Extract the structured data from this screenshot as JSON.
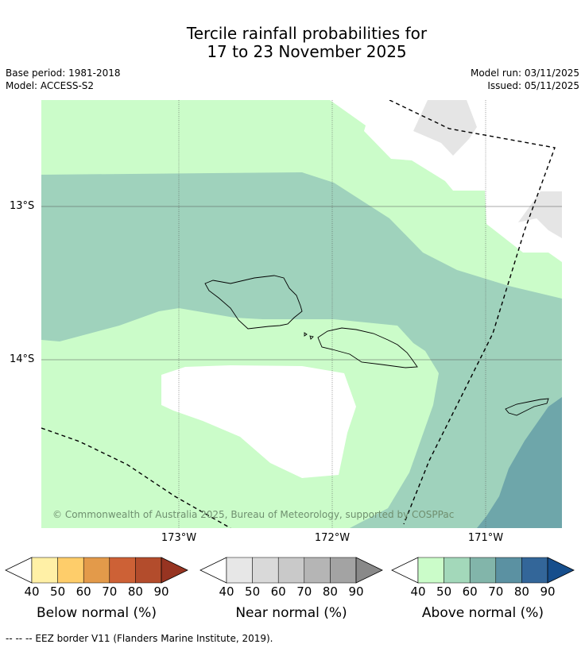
{
  "title_line1": "Tercile rainfall probabilities for",
  "title_line2": "17 to 23 November 2025",
  "base_period": "Base period: 1981-2018",
  "model": "Model: ACCESS-S2",
  "model_run": "Model run: 03/11/2025",
  "issued": "Issued: 05/11/2025",
  "lat_labels": [
    "13°S",
    "14°S"
  ],
  "lon_labels": [
    "173°W",
    "172°W",
    "171°W"
  ],
  "copyright": "© Commonwealth of Australia 2025, Bureau of Meteorology, supported by COSPPac",
  "footer": "--  --  -- EEZ border V11 (Flanders Marine Institute, 2019).",
  "colorbars": [
    {
      "title": "Below normal (%)",
      "ticks": [
        "40",
        "50",
        "60",
        "70",
        "80",
        "90"
      ],
      "colors": [
        "#fff0a6",
        "#fecd6a",
        "#e39a4a",
        "#cd6136",
        "#b34c2c",
        "#973421"
      ]
    },
    {
      "title": "Near normal (%)",
      "ticks": [
        "40",
        "50",
        "60",
        "70",
        "80",
        "90"
      ],
      "colors": [
        "#e7e7e7",
        "#d9d9d9",
        "#c9c9c9",
        "#b5b5b5",
        "#a3a3a3",
        "#898989"
      ]
    },
    {
      "title": "Above normal (%)",
      "ticks": [
        "40",
        "50",
        "60",
        "70",
        "80",
        "90"
      ],
      "colors": [
        "#cbfcc9",
        "#a3d8ba",
        "#82b5aa",
        "#5b91a2",
        "#336699",
        "#164e8c"
      ]
    }
  ],
  "colors": {
    "above_40": "#cbfcc9",
    "above_50": "#9fd2bc",
    "above_60": "#6ea6aa",
    "near_40": "#e5e5e5",
    "no_signal": "#ffffff"
  }
}
